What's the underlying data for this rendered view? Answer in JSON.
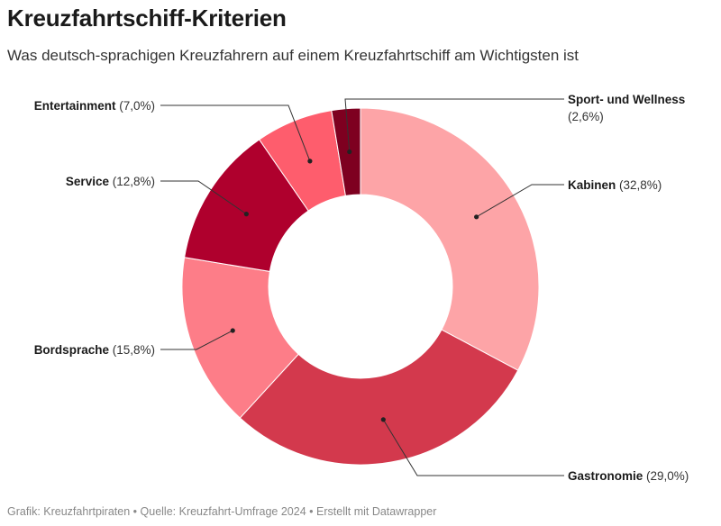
{
  "title": "Kreuzfahrtschiff-Kriterien",
  "subtitle": "Was deutsch-sprachigen Kreuzfahrern auf einem Kreuzfahrtschiff am Wichtigsten ist",
  "footer": {
    "grafik": "Grafik: Kreuzfahrtpiraten",
    "quelle": "Quelle: Kreuzfahrt-Umfrage 2024",
    "erstellt": "Erstellt mit Datawrapper",
    "separator": "•"
  },
  "chart_data": {
    "type": "pie",
    "donut": true,
    "unit": "%",
    "slices": [
      {
        "name": "Kabinen",
        "value": 32.8,
        "label": "(32,8%)",
        "color": "#fda4a7"
      },
      {
        "name": "Gastronomie",
        "value": 29.0,
        "label": "(29,0%)",
        "color": "#d3394d"
      },
      {
        "name": "Bordsprache",
        "value": 15.8,
        "label": "(15,8%)",
        "color": "#fd7d88"
      },
      {
        "name": "Service",
        "value": 12.8,
        "label": "(12,8%)",
        "color": "#af002d"
      },
      {
        "name": "Entertainment",
        "value": 7.0,
        "label": "(7,0%)",
        "color": "#fe5d6d"
      },
      {
        "name": "Sport- und Wellness",
        "value": 2.6,
        "label": "(2,6%)",
        "color": "#7e0020"
      }
    ]
  }
}
